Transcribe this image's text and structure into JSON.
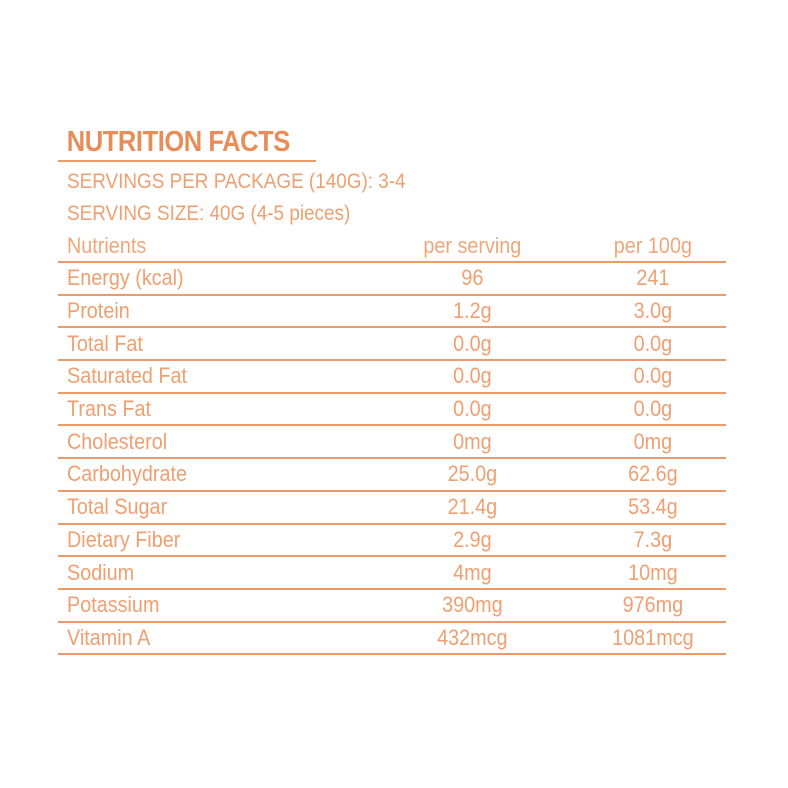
{
  "title": "NUTRITION FACTS",
  "servings_per_package": "SERVINGS PER PACKAGE (140G): 3-4",
  "serving_size": "SERVING SIZE: 40G (4-5 pieces)",
  "table": {
    "headers": [
      "Nutrients",
      "per serving",
      "per 100g"
    ],
    "rows": [
      [
        "Energy (kcal)",
        "96",
        "241"
      ],
      [
        "Protein",
        "1.2g",
        "3.0g"
      ],
      [
        "Total Fat",
        "0.0g",
        "0.0g"
      ],
      [
        "Saturated Fat",
        "0.0g",
        "0.0g"
      ],
      [
        "Trans Fat",
        "0.0g",
        "0.0g"
      ],
      [
        "Cholesterol",
        "0mg",
        "0mg"
      ],
      [
        "Carbohydrate",
        "25.0g",
        "62.6g"
      ],
      [
        "Total Sugar",
        "21.4g",
        "53.4g"
      ],
      [
        "Dietary Fiber",
        "2.9g",
        "7.3g"
      ],
      [
        "Sodium",
        "4mg",
        "10mg"
      ],
      [
        "Potassium",
        "390mg",
        "976mg"
      ],
      [
        "Vitamin A",
        "432mcg",
        "1081mcg"
      ]
    ]
  },
  "colors": {
    "accent": "#ec9a6a",
    "background": "#ffffff"
  }
}
